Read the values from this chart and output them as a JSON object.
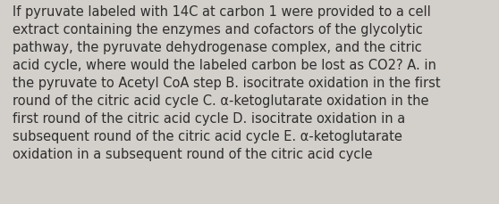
{
  "text": "If pyruvate labeled with 14C at carbon 1 were provided to a cell\nextract containing the enzymes and cofactors of the glycolytic\npathway, the pyruvate dehydrogenase complex, and the citric\nacid cycle, where would the labeled carbon be lost as CO2? A. in\nthe pyruvate to Acetyl CoA step B. isocitrate oxidation in the first\nround of the citric acid cycle C. α-ketoglutarate oxidation in the\nfirst round of the citric acid cycle D. isocitrate oxidation in a\nsubsequent round of the citric acid cycle E. α-ketoglutarate\noxidation in a subsequent round of the citric acid cycle",
  "background_color": "#d3d0cb",
  "text_color": "#2e2e2e",
  "font_size": 10.5,
  "fig_width": 5.58,
  "fig_height": 2.3,
  "dpi": 100
}
